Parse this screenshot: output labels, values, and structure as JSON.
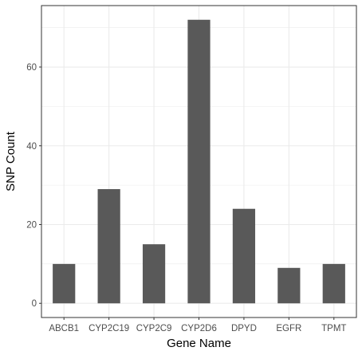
{
  "chart_data": {
    "type": "bar",
    "categories": [
      "ABCB1",
      "CYP2C19",
      "CYP2C9",
      "CYP2D6",
      "DPYD",
      "EGFR",
      "TPMT"
    ],
    "values": [
      10,
      29,
      15,
      72,
      24,
      9,
      10
    ],
    "xlabel": "Gene Name",
    "ylabel": "SNP Count",
    "ylim": [
      -3.6,
      75.6
    ],
    "yticks": [
      0,
      20,
      40,
      60
    ],
    "grid": true,
    "bar_color": "#595959",
    "grid_color": "#ebebeb",
    "panel_border_color": "#333333"
  }
}
